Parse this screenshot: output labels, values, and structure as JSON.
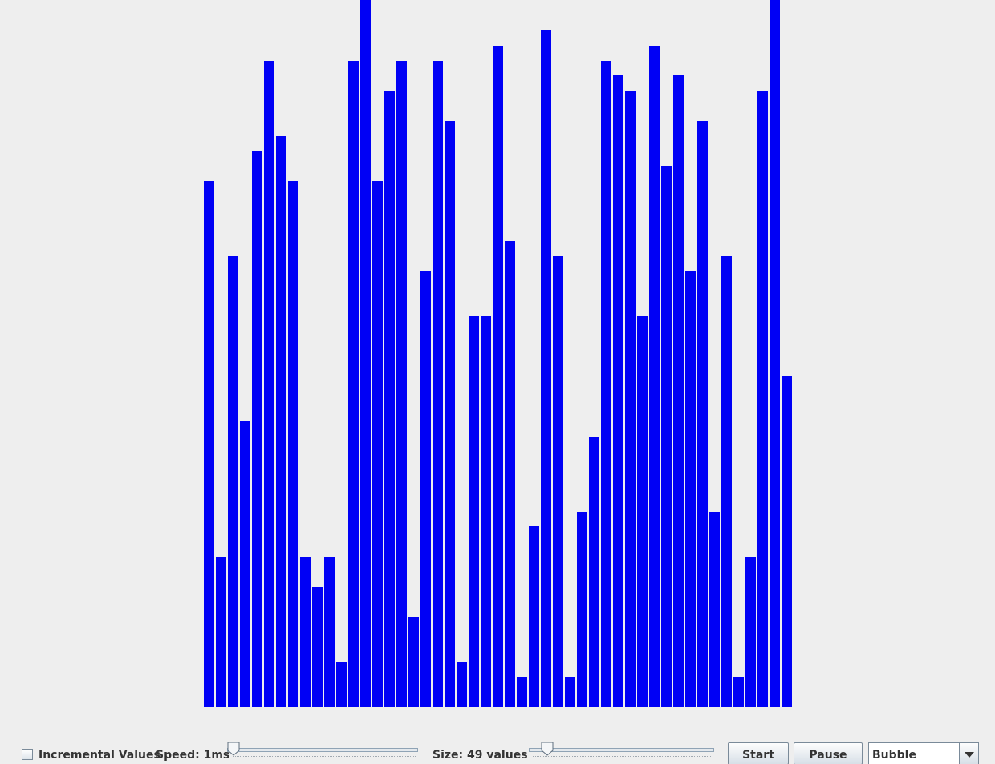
{
  "bars": {
    "max_value": 48,
    "values": [
      35,
      10,
      30,
      19,
      37,
      43,
      38,
      35,
      10,
      8,
      10,
      3,
      43,
      48,
      35,
      41,
      43,
      6,
      29,
      43,
      39,
      3,
      26,
      26,
      44,
      31,
      2,
      12,
      45,
      30,
      2,
      13,
      18,
      43,
      42,
      41,
      26,
      44,
      36,
      42,
      29,
      39,
      13,
      30,
      2,
      10,
      41,
      48,
      22
    ],
    "color": "#0000f5"
  },
  "controls": {
    "incremental_label": "Incremental Values",
    "incremental_checked": false,
    "speed_label": "Speed: 1ms",
    "speed_value": 1,
    "size_label": "Size: 49 values",
    "size_value": 49,
    "start_label": "Start",
    "pause_label": "Pause",
    "algorithm_selected": "Bubble"
  }
}
